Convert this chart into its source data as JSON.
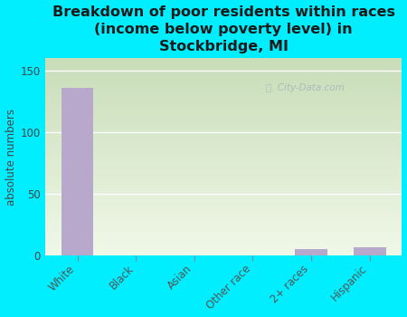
{
  "title": "Breakdown of poor residents within races\n(income below poverty level) in\nStockbridge, MI",
  "categories": [
    "White",
    "Black",
    "Asian",
    "Other race",
    "2+ races",
    "Hispanic"
  ],
  "values": [
    136,
    0,
    0,
    0,
    5,
    7
  ],
  "bar_color": "#b8a8cc",
  "ylabel": "absolute numbers",
  "ylim": [
    0,
    160
  ],
  "yticks": [
    0,
    50,
    100,
    150
  ],
  "bg_color": "#00eeff",
  "plot_bg_top": "#c8ddb8",
  "plot_bg_bottom": "#eef5e8",
  "grid_color": "#ffffff",
  "title_color": "#1a1a1a",
  "title_fontsize": 11.5,
  "label_fontsize": 8.5,
  "tick_color": "#555555",
  "watermark": "City-Data.com"
}
